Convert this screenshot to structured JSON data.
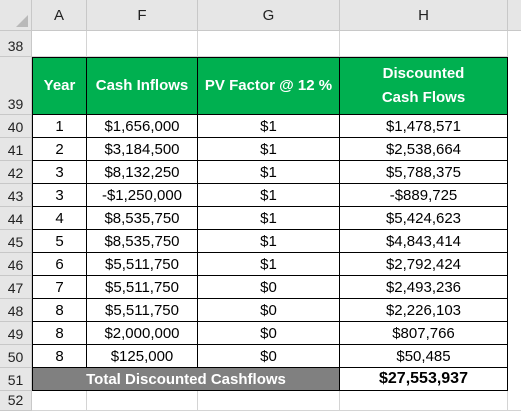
{
  "columns": [
    "A",
    "F",
    "G",
    "H"
  ],
  "row_numbers": [
    "38",
    "39",
    "40",
    "41",
    "42",
    "43",
    "44",
    "45",
    "46",
    "47",
    "48",
    "49",
    "50",
    "51",
    "52"
  ],
  "table": {
    "headers": {
      "year": "Year",
      "inflows": "Cash Inflows",
      "factor": "PV  Factor @ 12 %",
      "discounted": "Discounted Cash Flows"
    },
    "rows": [
      {
        "year": "1",
        "inflow": "$1,656,000",
        "factor": "$1",
        "discounted": "$1,478,571"
      },
      {
        "year": "2",
        "inflow": "$3,184,500",
        "factor": "$1",
        "discounted": "$2,538,664"
      },
      {
        "year": "3",
        "inflow": "$8,132,250",
        "factor": "$1",
        "discounted": "$5,788,375"
      },
      {
        "year": "3",
        "inflow": "-$1,250,000",
        "factor": "$1",
        "discounted": "-$889,725"
      },
      {
        "year": "4",
        "inflow": "$8,535,750",
        "factor": "$1",
        "discounted": "$5,424,623"
      },
      {
        "year": "5",
        "inflow": "$8,535,750",
        "factor": "$1",
        "discounted": "$4,843,414"
      },
      {
        "year": "6",
        "inflow": "$5,511,750",
        "factor": "$1",
        "discounted": "$2,792,424"
      },
      {
        "year": "7",
        "inflow": "$5,511,750",
        "factor": "$0",
        "discounted": "$2,493,236"
      },
      {
        "year": "8",
        "inflow": "$5,511,750",
        "factor": "$0",
        "discounted": "$2,226,103"
      },
      {
        "year": "8",
        "inflow": "$2,000,000",
        "factor": "$0",
        "discounted": "$807,766"
      },
      {
        "year": "8",
        "inflow": "$125,000",
        "factor": "$0",
        "discounted": "$50,485"
      }
    ],
    "total_label": "Total Discounted Cashflows",
    "total_value": "$27,553,937"
  },
  "colors": {
    "header_green": "#00b050",
    "total_gray": "#808080",
    "sheet_header_gray": "#e6e6e6"
  }
}
